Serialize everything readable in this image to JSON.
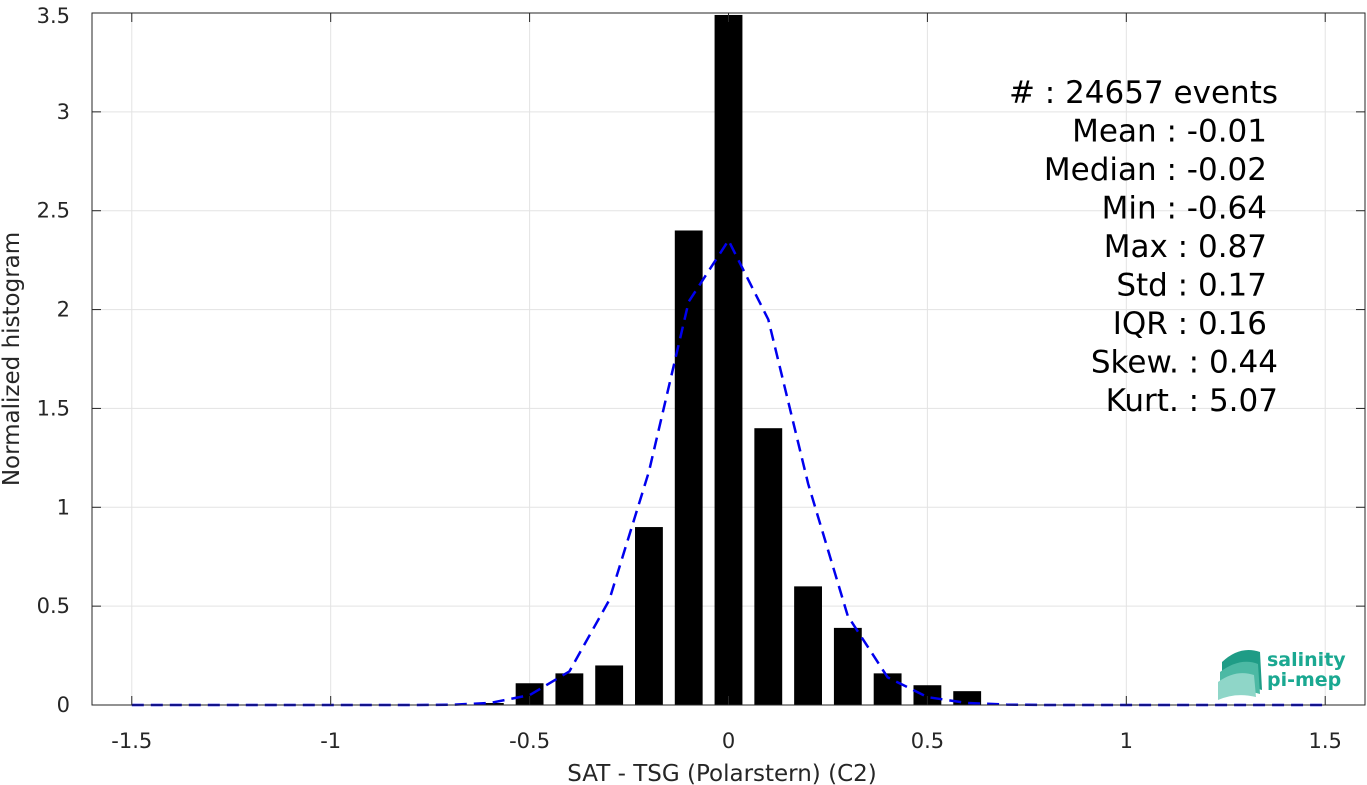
{
  "chart_data": {
    "type": "bar",
    "xlabel": "SAT - TSG (Polarstern) (C2)",
    "ylabel": "Normalized histogram",
    "xlim": [
      -1.6,
      1.6
    ],
    "ylim": [
      0,
      3.5
    ],
    "x_ticks": [
      -1.5,
      -1,
      -0.5,
      0,
      0.5,
      1,
      1.5
    ],
    "x_tick_labels": [
      "-1.5",
      "-1",
      "-0.5",
      "0",
      "0.5",
      "1",
      "1.5"
    ],
    "y_ticks": [
      0,
      0.5,
      1,
      1.5,
      2,
      2.5,
      3,
      3.5
    ],
    "y_tick_labels": [
      "0",
      "0.5",
      "1",
      "1.5",
      "2",
      "2.5",
      "3",
      "3.5"
    ],
    "grid": true,
    "bar_width": 0.07,
    "bars": {
      "x": [
        -0.6,
        -0.5,
        -0.4,
        -0.3,
        -0.2,
        -0.1,
        0,
        0.1,
        0.2,
        0.3,
        0.4,
        0.5,
        0.6
      ],
      "values": [
        0.01,
        0.11,
        0.16,
        0.2,
        0.9,
        2.4,
        3.49,
        1.4,
        0.6,
        0.39,
        0.16,
        0.1,
        0.07
      ],
      "color": "#000000"
    },
    "fit_curve": {
      "style": "dashed",
      "color": "#0000ee",
      "x": [
        -1.5,
        -1.4,
        -1.3,
        -1.2,
        -1.1,
        -1.0,
        -0.9,
        -0.8,
        -0.7,
        -0.6,
        -0.5,
        -0.4,
        -0.3,
        -0.2,
        -0.1,
        0,
        0.1,
        0.2,
        0.3,
        0.4,
        0.5,
        0.6,
        0.7,
        0.8,
        0.9,
        1.0,
        1.1,
        1.2,
        1.3,
        1.4,
        1.5
      ],
      "y": [
        0,
        0,
        0,
        0,
        0,
        0,
        0,
        0,
        0.001,
        0.01,
        0.05,
        0.17,
        0.53,
        1.18,
        2.04,
        2.35,
        1.95,
        1.12,
        0.45,
        0.14,
        0.04,
        0.01,
        0.002,
        0,
        0,
        0,
        0,
        0,
        0,
        0,
        0
      ]
    },
    "stats": [
      "#  : 24657 events",
      "Mean : -0.01",
      "Median : -0.02",
      "Min : -0.64",
      "Max : 0.87",
      "Std : 0.17",
      "IQR : 0.16",
      "Skew. : 0.44",
      "Kurt. : 5.07"
    ]
  },
  "logo": {
    "line1": "salinity",
    "line2": "pi-mep",
    "color": "#1aa891"
  }
}
